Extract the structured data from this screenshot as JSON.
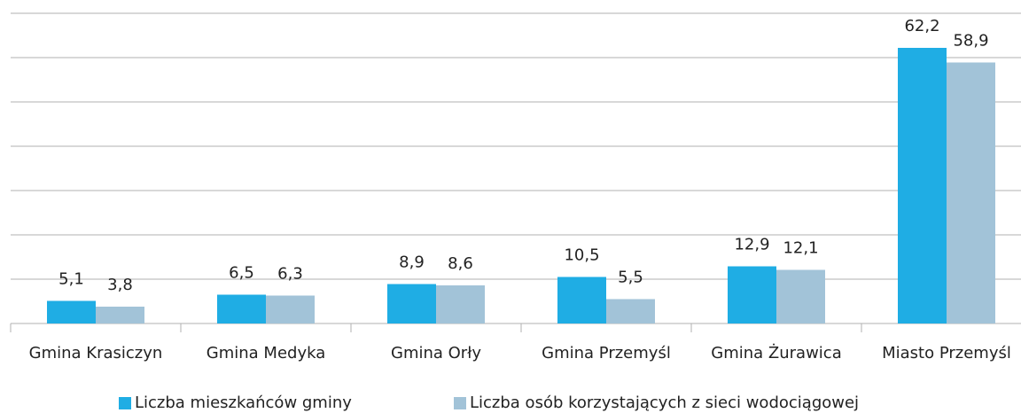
{
  "chart_data": {
    "type": "bar",
    "categories": [
      "Gmina Krasiczyn",
      "Gmina Medyka",
      "Gmina Orły",
      "Gmina Przemyśl",
      "Gmina Żurawica",
      "Miasto Przemyśl"
    ],
    "series": [
      {
        "name": "Liczba mieszkańców gminy",
        "color": "#1fade4",
        "values": [
          5.1,
          6.5,
          8.9,
          10.5,
          12.9,
          62.2
        ],
        "value_labels": [
          "5,1",
          "6,5",
          "8,9",
          "10,5",
          "12,9",
          "62,2"
        ]
      },
      {
        "name": "Liczba osób korzystających z sieci wodociągowej",
        "color": "#a2c3d8",
        "values": [
          3.8,
          6.3,
          8.6,
          5.5,
          12.1,
          58.9
        ],
        "value_labels": [
          "3,8",
          "6,3",
          "8,6",
          "5,5",
          "12,1",
          "58,9"
        ]
      }
    ],
    "ylim": [
      0,
      70
    ],
    "yticks": [
      0,
      10,
      20,
      30,
      40,
      50,
      60,
      70
    ],
    "grid": true,
    "legend": "bottom"
  }
}
